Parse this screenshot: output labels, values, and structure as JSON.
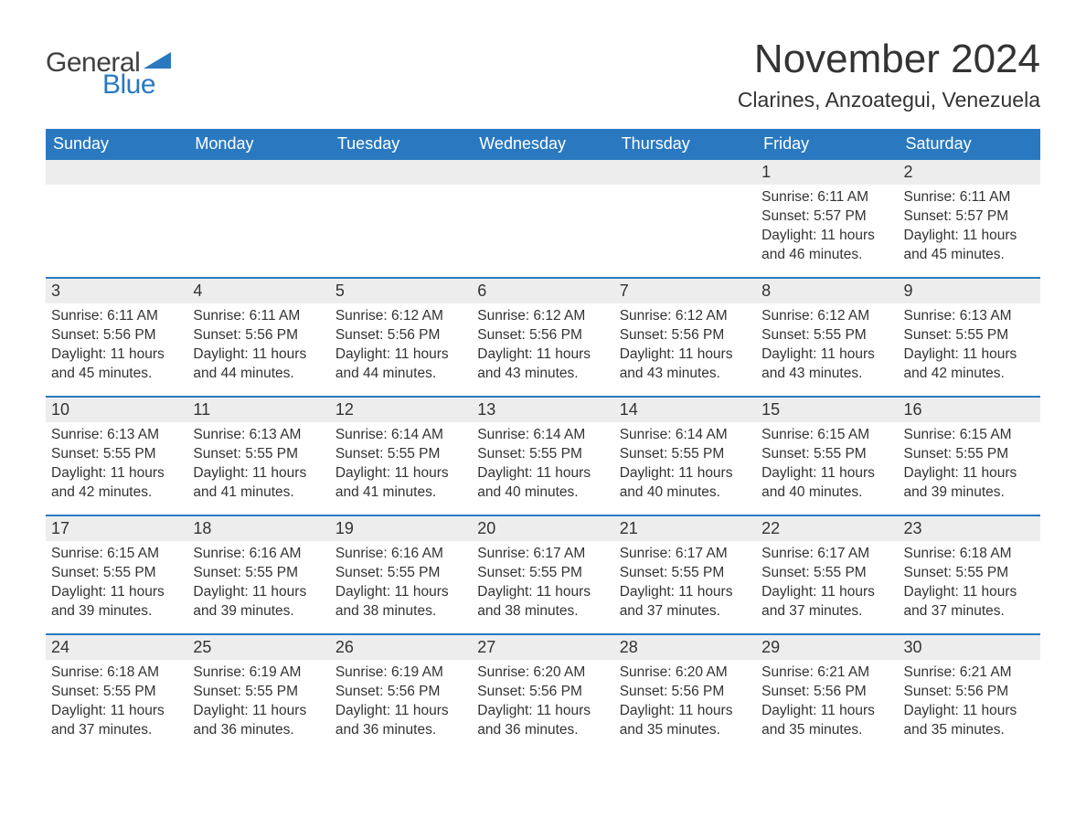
{
  "brand": {
    "text_general": "General",
    "text_blue": "Blue",
    "shape_color": "#2a79c0",
    "text_color_dark": "#404040"
  },
  "header": {
    "month_title": "November 2024",
    "location": "Clarines, Anzoategui, Venezuela"
  },
  "calendar": {
    "header_bg": "#2a79c0",
    "header_text_color": "#ffffff",
    "row_divider_color": "#2a79c0",
    "daybar_bg": "#ededed",
    "text_color": "#333333",
    "font_family": "Arial, Helvetica, sans-serif",
    "weekday_labels": [
      "Sunday",
      "Monday",
      "Tuesday",
      "Wednesday",
      "Thursday",
      "Friday",
      "Saturday"
    ],
    "weeks": [
      [
        {
          "blank": true
        },
        {
          "blank": true
        },
        {
          "blank": true
        },
        {
          "blank": true
        },
        {
          "blank": true
        },
        {
          "day": "1",
          "sunrise": "Sunrise: 6:11 AM",
          "sunset": "Sunset: 5:57 PM",
          "daylight1": "Daylight: 11 hours",
          "daylight2": "and 46 minutes."
        },
        {
          "day": "2",
          "sunrise": "Sunrise: 6:11 AM",
          "sunset": "Sunset: 5:57 PM",
          "daylight1": "Daylight: 11 hours",
          "daylight2": "and 45 minutes."
        }
      ],
      [
        {
          "day": "3",
          "sunrise": "Sunrise: 6:11 AM",
          "sunset": "Sunset: 5:56 PM",
          "daylight1": "Daylight: 11 hours",
          "daylight2": "and 45 minutes."
        },
        {
          "day": "4",
          "sunrise": "Sunrise: 6:11 AM",
          "sunset": "Sunset: 5:56 PM",
          "daylight1": "Daylight: 11 hours",
          "daylight2": "and 44 minutes."
        },
        {
          "day": "5",
          "sunrise": "Sunrise: 6:12 AM",
          "sunset": "Sunset: 5:56 PM",
          "daylight1": "Daylight: 11 hours",
          "daylight2": "and 44 minutes."
        },
        {
          "day": "6",
          "sunrise": "Sunrise: 6:12 AM",
          "sunset": "Sunset: 5:56 PM",
          "daylight1": "Daylight: 11 hours",
          "daylight2": "and 43 minutes."
        },
        {
          "day": "7",
          "sunrise": "Sunrise: 6:12 AM",
          "sunset": "Sunset: 5:56 PM",
          "daylight1": "Daylight: 11 hours",
          "daylight2": "and 43 minutes."
        },
        {
          "day": "8",
          "sunrise": "Sunrise: 6:12 AM",
          "sunset": "Sunset: 5:55 PM",
          "daylight1": "Daylight: 11 hours",
          "daylight2": "and 43 minutes."
        },
        {
          "day": "9",
          "sunrise": "Sunrise: 6:13 AM",
          "sunset": "Sunset: 5:55 PM",
          "daylight1": "Daylight: 11 hours",
          "daylight2": "and 42 minutes."
        }
      ],
      [
        {
          "day": "10",
          "sunrise": "Sunrise: 6:13 AM",
          "sunset": "Sunset: 5:55 PM",
          "daylight1": "Daylight: 11 hours",
          "daylight2": "and 42 minutes."
        },
        {
          "day": "11",
          "sunrise": "Sunrise: 6:13 AM",
          "sunset": "Sunset: 5:55 PM",
          "daylight1": "Daylight: 11 hours",
          "daylight2": "and 41 minutes."
        },
        {
          "day": "12",
          "sunrise": "Sunrise: 6:14 AM",
          "sunset": "Sunset: 5:55 PM",
          "daylight1": "Daylight: 11 hours",
          "daylight2": "and 41 minutes."
        },
        {
          "day": "13",
          "sunrise": "Sunrise: 6:14 AM",
          "sunset": "Sunset: 5:55 PM",
          "daylight1": "Daylight: 11 hours",
          "daylight2": "and 40 minutes."
        },
        {
          "day": "14",
          "sunrise": "Sunrise: 6:14 AM",
          "sunset": "Sunset: 5:55 PM",
          "daylight1": "Daylight: 11 hours",
          "daylight2": "and 40 minutes."
        },
        {
          "day": "15",
          "sunrise": "Sunrise: 6:15 AM",
          "sunset": "Sunset: 5:55 PM",
          "daylight1": "Daylight: 11 hours",
          "daylight2": "and 40 minutes."
        },
        {
          "day": "16",
          "sunrise": "Sunrise: 6:15 AM",
          "sunset": "Sunset: 5:55 PM",
          "daylight1": "Daylight: 11 hours",
          "daylight2": "and 39 minutes."
        }
      ],
      [
        {
          "day": "17",
          "sunrise": "Sunrise: 6:15 AM",
          "sunset": "Sunset: 5:55 PM",
          "daylight1": "Daylight: 11 hours",
          "daylight2": "and 39 minutes."
        },
        {
          "day": "18",
          "sunrise": "Sunrise: 6:16 AM",
          "sunset": "Sunset: 5:55 PM",
          "daylight1": "Daylight: 11 hours",
          "daylight2": "and 39 minutes."
        },
        {
          "day": "19",
          "sunrise": "Sunrise: 6:16 AM",
          "sunset": "Sunset: 5:55 PM",
          "daylight1": "Daylight: 11 hours",
          "daylight2": "and 38 minutes."
        },
        {
          "day": "20",
          "sunrise": "Sunrise: 6:17 AM",
          "sunset": "Sunset: 5:55 PM",
          "daylight1": "Daylight: 11 hours",
          "daylight2": "and 38 minutes."
        },
        {
          "day": "21",
          "sunrise": "Sunrise: 6:17 AM",
          "sunset": "Sunset: 5:55 PM",
          "daylight1": "Daylight: 11 hours",
          "daylight2": "and 37 minutes."
        },
        {
          "day": "22",
          "sunrise": "Sunrise: 6:17 AM",
          "sunset": "Sunset: 5:55 PM",
          "daylight1": "Daylight: 11 hours",
          "daylight2": "and 37 minutes."
        },
        {
          "day": "23",
          "sunrise": "Sunrise: 6:18 AM",
          "sunset": "Sunset: 5:55 PM",
          "daylight1": "Daylight: 11 hours",
          "daylight2": "and 37 minutes."
        }
      ],
      [
        {
          "day": "24",
          "sunrise": "Sunrise: 6:18 AM",
          "sunset": "Sunset: 5:55 PM",
          "daylight1": "Daylight: 11 hours",
          "daylight2": "and 37 minutes."
        },
        {
          "day": "25",
          "sunrise": "Sunrise: 6:19 AM",
          "sunset": "Sunset: 5:55 PM",
          "daylight1": "Daylight: 11 hours",
          "daylight2": "and 36 minutes."
        },
        {
          "day": "26",
          "sunrise": "Sunrise: 6:19 AM",
          "sunset": "Sunset: 5:56 PM",
          "daylight1": "Daylight: 11 hours",
          "daylight2": "and 36 minutes."
        },
        {
          "day": "27",
          "sunrise": "Sunrise: 6:20 AM",
          "sunset": "Sunset: 5:56 PM",
          "daylight1": "Daylight: 11 hours",
          "daylight2": "and 36 minutes."
        },
        {
          "day": "28",
          "sunrise": "Sunrise: 6:20 AM",
          "sunset": "Sunset: 5:56 PM",
          "daylight1": "Daylight: 11 hours",
          "daylight2": "and 35 minutes."
        },
        {
          "day": "29",
          "sunrise": "Sunrise: 6:21 AM",
          "sunset": "Sunset: 5:56 PM",
          "daylight1": "Daylight: 11 hours",
          "daylight2": "and 35 minutes."
        },
        {
          "day": "30",
          "sunrise": "Sunrise: 6:21 AM",
          "sunset": "Sunset: 5:56 PM",
          "daylight1": "Daylight: 11 hours",
          "daylight2": "and 35 minutes."
        }
      ]
    ]
  }
}
